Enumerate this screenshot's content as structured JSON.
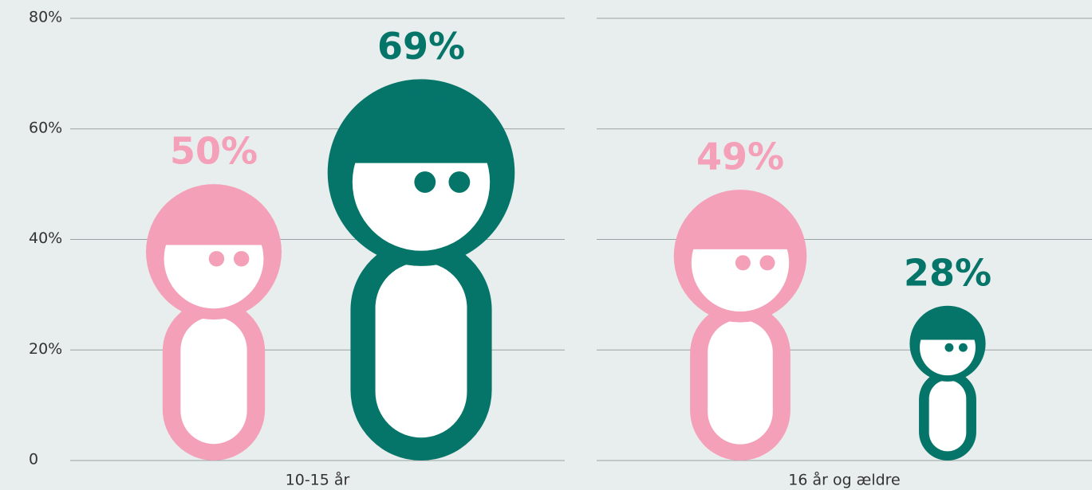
{
  "chart_data": {
    "type": "pictogram-bar",
    "categories": [
      "10-15 år",
      "16 år og ældre"
    ],
    "series": [
      {
        "color": "#f4a0b8",
        "values": [
          50,
          49
        ],
        "value_labels": [
          "50%",
          "49%"
        ]
      },
      {
        "color": "#05756a",
        "values": [
          69,
          28
        ],
        "value_labels": [
          "69%",
          "28%"
        ]
      }
    ],
    "ylim": [
      0,
      80
    ],
    "yticks": [
      0,
      {
        "value": 20,
        "label": "20%"
      },
      {
        "value": 40,
        "label": "40%"
      },
      {
        "value": 60,
        "label": "60%"
      },
      {
        "value": 80,
        "label": "80%"
      }
    ],
    "grid": true
  }
}
